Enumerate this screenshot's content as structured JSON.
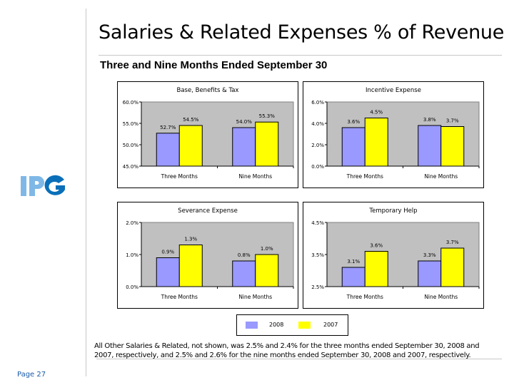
{
  "slide": {
    "title": "Salaries & Related Expenses % of Revenue",
    "subtitle": "Three and Nine Months Ended September 30",
    "logo_text": "IPG",
    "footnote": "All Other Salaries & Related, not shown, was 2.5% and 2.4% for the three months ended September 30, 2008 and 2007, respectively, and 2.5% and 2.6% for the nine months ended September 30, 2008 and 2007, respectively.",
    "page_label": "Page 27"
  },
  "colors": {
    "series_2008": "#9999ff",
    "series_2007": "#ffff00",
    "plot_bg": "#c0c0c0",
    "logo_light": "#7fb8e6",
    "logo_dark": "#0a6fb8",
    "page_text": "#1a5aa8"
  },
  "legend": {
    "items": [
      {
        "label": "2008",
        "color": "#9999ff"
      },
      {
        "label": "2007",
        "color": "#ffff00"
      }
    ]
  },
  "chart_data": [
    {
      "type": "bar",
      "title": "Base, Benefits & Tax",
      "categories": [
        "Three Months",
        "Nine Months"
      ],
      "series": [
        {
          "name": "2008",
          "values": [
            52.7,
            54.0
          ],
          "labels": [
            "52.7%",
            "54.0%"
          ]
        },
        {
          "name": "2007",
          "values": [
            54.5,
            55.3
          ],
          "labels": [
            "54.5%",
            "55.3%"
          ]
        }
      ],
      "ylim": [
        45,
        60
      ],
      "yticks": [
        45,
        50,
        55,
        60
      ],
      "ytick_labels": [
        "45.0%",
        "50.0%",
        "55.0%",
        "60.0%"
      ],
      "xlabel": "",
      "ylabel": "",
      "grid": false,
      "legend": "bottom"
    },
    {
      "type": "bar",
      "title": "Incentive Expense",
      "categories": [
        "Three Months",
        "Nine Months"
      ],
      "series": [
        {
          "name": "2008",
          "values": [
            3.6,
            3.8
          ],
          "labels": [
            "3.6%",
            "3.8%"
          ]
        },
        {
          "name": "2007",
          "values": [
            4.5,
            3.7
          ],
          "labels": [
            "4.5%",
            "3.7%"
          ]
        }
      ],
      "ylim": [
        0,
        6
      ],
      "yticks": [
        0,
        2,
        4,
        6
      ],
      "ytick_labels": [
        "0.0%",
        "2.0%",
        "4.0%",
        "6.0%"
      ],
      "xlabel": "",
      "ylabel": "",
      "grid": false,
      "legend": "bottom"
    },
    {
      "type": "bar",
      "title": "Severance Expense",
      "categories": [
        "Three Months",
        "Nine Months"
      ],
      "series": [
        {
          "name": "2008",
          "values": [
            0.9,
            0.8
          ],
          "labels": [
            "0.9%",
            "0.8%"
          ]
        },
        {
          "name": "2007",
          "values": [
            1.3,
            1.0
          ],
          "labels": [
            "1.3%",
            "1.0%"
          ]
        }
      ],
      "ylim": [
        0,
        2
      ],
      "yticks": [
        0,
        1,
        2
      ],
      "ytick_labels": [
        "0.0%",
        "1.0%",
        "2.0%"
      ],
      "xlabel": "",
      "ylabel": "",
      "grid": false,
      "legend": "bottom"
    },
    {
      "type": "bar",
      "title": "Temporary Help",
      "categories": [
        "Three Months",
        "Nine Months"
      ],
      "series": [
        {
          "name": "2008",
          "values": [
            3.1,
            3.3
          ],
          "labels": [
            "3.1%",
            "3.3%"
          ]
        },
        {
          "name": "2007",
          "values": [
            3.6,
            3.7
          ],
          "labels": [
            "3.6%",
            "3.7%"
          ]
        }
      ],
      "ylim": [
        2.5,
        4.5
      ],
      "yticks": [
        2.5,
        3.5,
        4.5
      ],
      "ytick_labels": [
        "2.5%",
        "3.5%",
        "4.5%"
      ],
      "xlabel": "",
      "ylabel": "",
      "grid": false,
      "legend": "bottom"
    }
  ]
}
